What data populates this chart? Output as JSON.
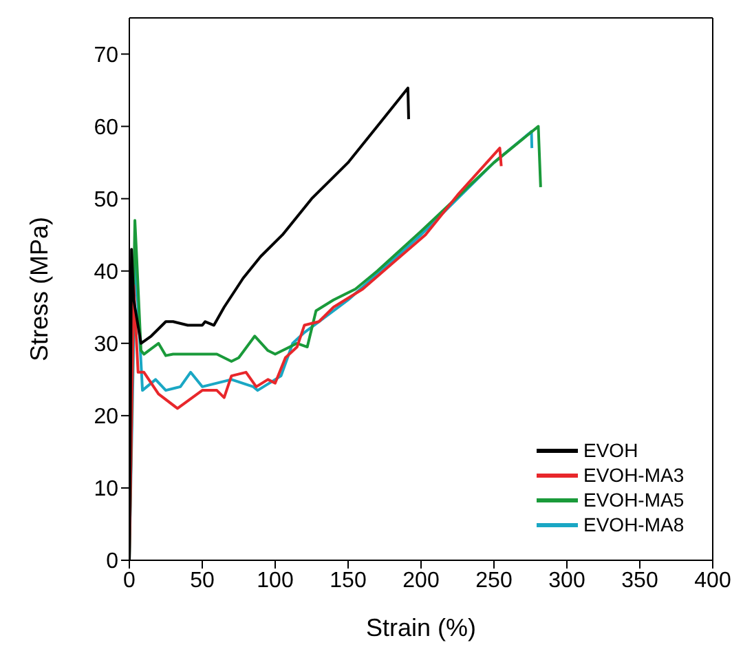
{
  "chart_data": {
    "type": "line",
    "xlabel": "Strain (%)",
    "ylabel": "Stress (MPa)",
    "xlim": [
      0,
      400
    ],
    "xticks": [
      0,
      50,
      100,
      150,
      200,
      250,
      300,
      350,
      400
    ],
    "ylim": [
      0,
      75
    ],
    "yticks": [
      0,
      10,
      20,
      30,
      40,
      50,
      60,
      70
    ],
    "legend": "bottom right",
    "marker": "none",
    "line_style": "solid",
    "series": [
      {
        "name": "EVOH",
        "color": "#000000",
        "x": [
          0,
          1.5,
          3,
          8,
          15,
          25,
          30,
          40,
          50,
          52,
          58,
          65,
          78,
          90,
          105,
          125,
          150,
          170,
          191,
          191.5
        ],
        "values": [
          0,
          43,
          36,
          30,
          31,
          33,
          33,
          32.5,
          32.5,
          33,
          32.5,
          35,
          39,
          42,
          45,
          50,
          55,
          60,
          65.3,
          61
        ]
      },
      {
        "name": "EVOH-MA3",
        "color": "#e8272b",
        "x": [
          0,
          3,
          6,
          10,
          20,
          33,
          50,
          60,
          65,
          70,
          80,
          87,
          95,
          100,
          107,
          115,
          120,
          130,
          140,
          160,
          180,
          203,
          225,
          254,
          255
        ],
        "values": [
          0,
          38,
          26,
          26,
          23,
          21,
          23.5,
          23.5,
          22.5,
          25.5,
          26,
          24,
          25,
          24.5,
          28,
          29.5,
          32.5,
          33,
          35,
          37.5,
          41,
          45,
          50.5,
          57,
          54.5
        ]
      },
      {
        "name": "EVOH-MA5",
        "color": "#1a9a3a",
        "x": [
          0,
          3.8,
          5,
          8,
          10,
          20,
          25,
          30,
          60,
          70,
          75,
          86,
          95,
          100,
          105,
          115,
          122,
          128,
          140,
          155,
          170,
          200,
          250,
          280.4,
          282
        ],
        "values": [
          0,
          47,
          42,
          29,
          28.5,
          30,
          28.3,
          28.5,
          28.5,
          27.5,
          28,
          31,
          29,
          28.5,
          29,
          30,
          29.5,
          34.5,
          36,
          37.5,
          40,
          45.5,
          55,
          60,
          51.6
        ]
      },
      {
        "name": "EVOH-MA8",
        "color": "#1aa7c4",
        "x": [
          0,
          4,
          6,
          9,
          18,
          25,
          35,
          42,
          50,
          70,
          85,
          88,
          100,
          104,
          112,
          120,
          130,
          150,
          200,
          250,
          275.7,
          276
        ],
        "values": [
          0,
          41,
          35,
          23.5,
          25,
          23.5,
          24,
          26,
          24,
          25,
          24,
          23.5,
          25,
          25.5,
          30,
          31.5,
          33,
          36,
          45,
          55,
          59.3,
          57
        ]
      }
    ]
  }
}
